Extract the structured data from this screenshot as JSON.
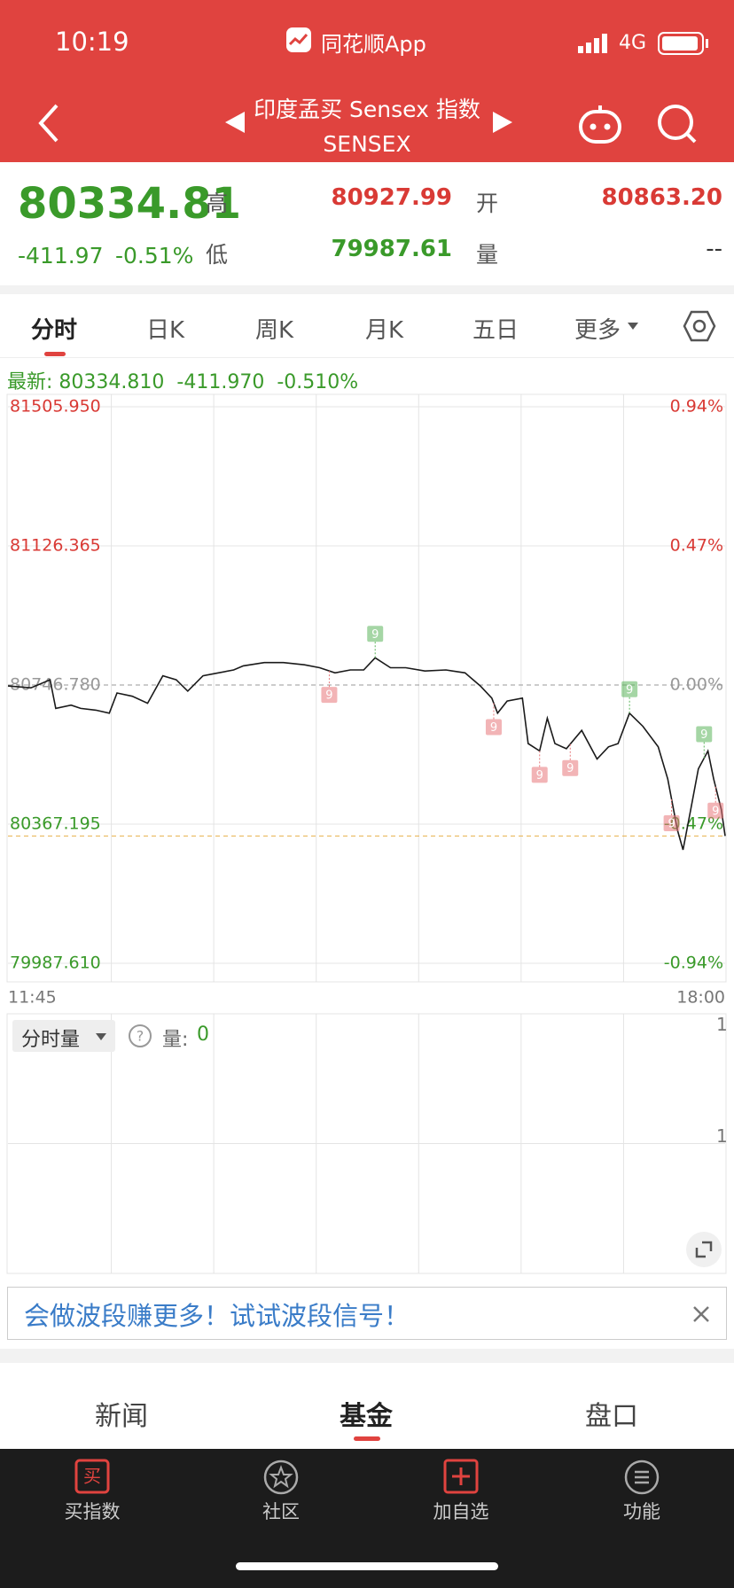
{
  "status_bar": {
    "time": "10:19",
    "app": "同花顺App",
    "network": "4G"
  },
  "header": {
    "title": "印度孟买 Sensex 指数",
    "subtitle": "SENSEX"
  },
  "quote": {
    "price": "80334.81",
    "change": "-411.97",
    "change_pct": "-0.51%",
    "high_label": "高",
    "high": "80927.99",
    "open_label": "开",
    "open": "80863.20",
    "low_label": "低",
    "low": "79987.61",
    "volume_label": "量",
    "volume": "--"
  },
  "tabs": [
    "分时",
    "日K",
    "周K",
    "月K",
    "五日",
    "更多"
  ],
  "latest": {
    "label": "最新:",
    "price": "80334.810",
    "change": "-411.970",
    "pct": "-0.510%"
  },
  "chart_data": {
    "type": "line",
    "x": [
      "11:45",
      "11:57",
      "12:07",
      "12:10",
      "12:18",
      "12:23",
      "12:31",
      "12:38",
      "12:42",
      "12:50",
      "12:58",
      "13:06",
      "13:13",
      "13:19",
      "13:27",
      "13:35",
      "13:43",
      "13:48",
      "13:59",
      "14:09",
      "14:20",
      "14:28",
      "14:36",
      "14:44",
      "14:51",
      "14:57",
      "15:05",
      "15:13",
      "15:23",
      "15:34",
      "15:44",
      "15:52",
      "15:58",
      "16:01",
      "16:06",
      "16:14",
      "16:17",
      "16:23",
      "16:27",
      "16:31",
      "16:37",
      "16:45",
      "16:53",
      "16:59",
      "17:04",
      "17:10",
      "17:17",
      "17:25",
      "17:30",
      "17:35",
      "17:38",
      "17:42",
      "17:46",
      "17:51",
      "17:54",
      "17:58",
      "18:00"
    ],
    "series": [
      {
        "color": "#1a1a1a",
        "values": [
          80744,
          80739,
          80761,
          80683,
          80692,
          80683,
          80678,
          80670,
          80725,
          80716,
          80697,
          80772,
          80761,
          80730,
          80772,
          80780,
          80788,
          80799,
          80808,
          80808,
          80802,
          80794,
          80780,
          80788,
          80788,
          80821,
          80794,
          80794,
          80785,
          80788,
          80780,
          80744,
          80711,
          80670,
          80703,
          80711,
          80587,
          80567,
          80656,
          80587,
          80573,
          80623,
          80545,
          80578,
          80587,
          80670,
          80634,
          80578,
          80490,
          80352,
          80297,
          80407,
          80518,
          80567,
          80490,
          80407,
          80334.81
        ]
      }
    ],
    "xlim": [
      "11:45",
      "18:00"
    ],
    "xticks": [
      "11:45",
      "18:00"
    ],
    "ylim": [
      79987.61,
      81505.95
    ],
    "yticks": [
      {
        "value": 81505.95,
        "label": "81505.950"
      },
      {
        "value": 81126.365,
        "label": "81126.365"
      },
      {
        "value": 80746.78,
        "label": "80746.780"
      },
      {
        "value": 80367.195,
        "label": "80367.195"
      },
      {
        "value": 79987.61,
        "label": "79987.610"
      }
    ],
    "y2lim": [
      -0.94,
      0.94
    ],
    "y2ticks": [
      {
        "value": 0.94,
        "label": "0.94%"
      },
      {
        "value": 0.47,
        "label": "0.47%"
      },
      {
        "value": 0,
        "label": "0.00%"
      },
      {
        "value": -0.47,
        "label": "-0.47%"
      },
      {
        "value": -0.94,
        "label": "-0.94%"
      }
    ],
    "grid": true,
    "signals": [
      {
        "x": "14:33",
        "label": "9",
        "color": "#e8777a",
        "side": "below"
      },
      {
        "x": "14:57",
        "label": "9",
        "color": "#5bb55b",
        "side": "above"
      },
      {
        "x": "15:59",
        "label": "9",
        "color": "#e8777a",
        "side": "below"
      },
      {
        "x": "16:23",
        "label": "9",
        "color": "#e8777a",
        "side": "below"
      },
      {
        "x": "16:39",
        "label": "9",
        "color": "#e8777a",
        "side": "below"
      },
      {
        "x": "17:10",
        "label": "9",
        "color": "#5bb55b",
        "side": "above"
      },
      {
        "x": "17:32",
        "label": "9",
        "color": "#e8777a",
        "side": "below"
      },
      {
        "x": "17:49",
        "label": "9",
        "color": "#5bb55b",
        "side": "above"
      },
      {
        "x": "17:55",
        "label": "9",
        "color": "#e8777a",
        "side": "below"
      }
    ]
  },
  "volume": {
    "selector": "分时量",
    "label": "量:",
    "value": "0",
    "ticks": [
      "1",
      "1"
    ]
  },
  "banner": "会做波段赚更多！试试波段信号！",
  "bottom_tabs": [
    "新闻",
    "基金",
    "盘口"
  ],
  "nav": [
    "买指数",
    "社区",
    "加自选",
    "功能"
  ]
}
